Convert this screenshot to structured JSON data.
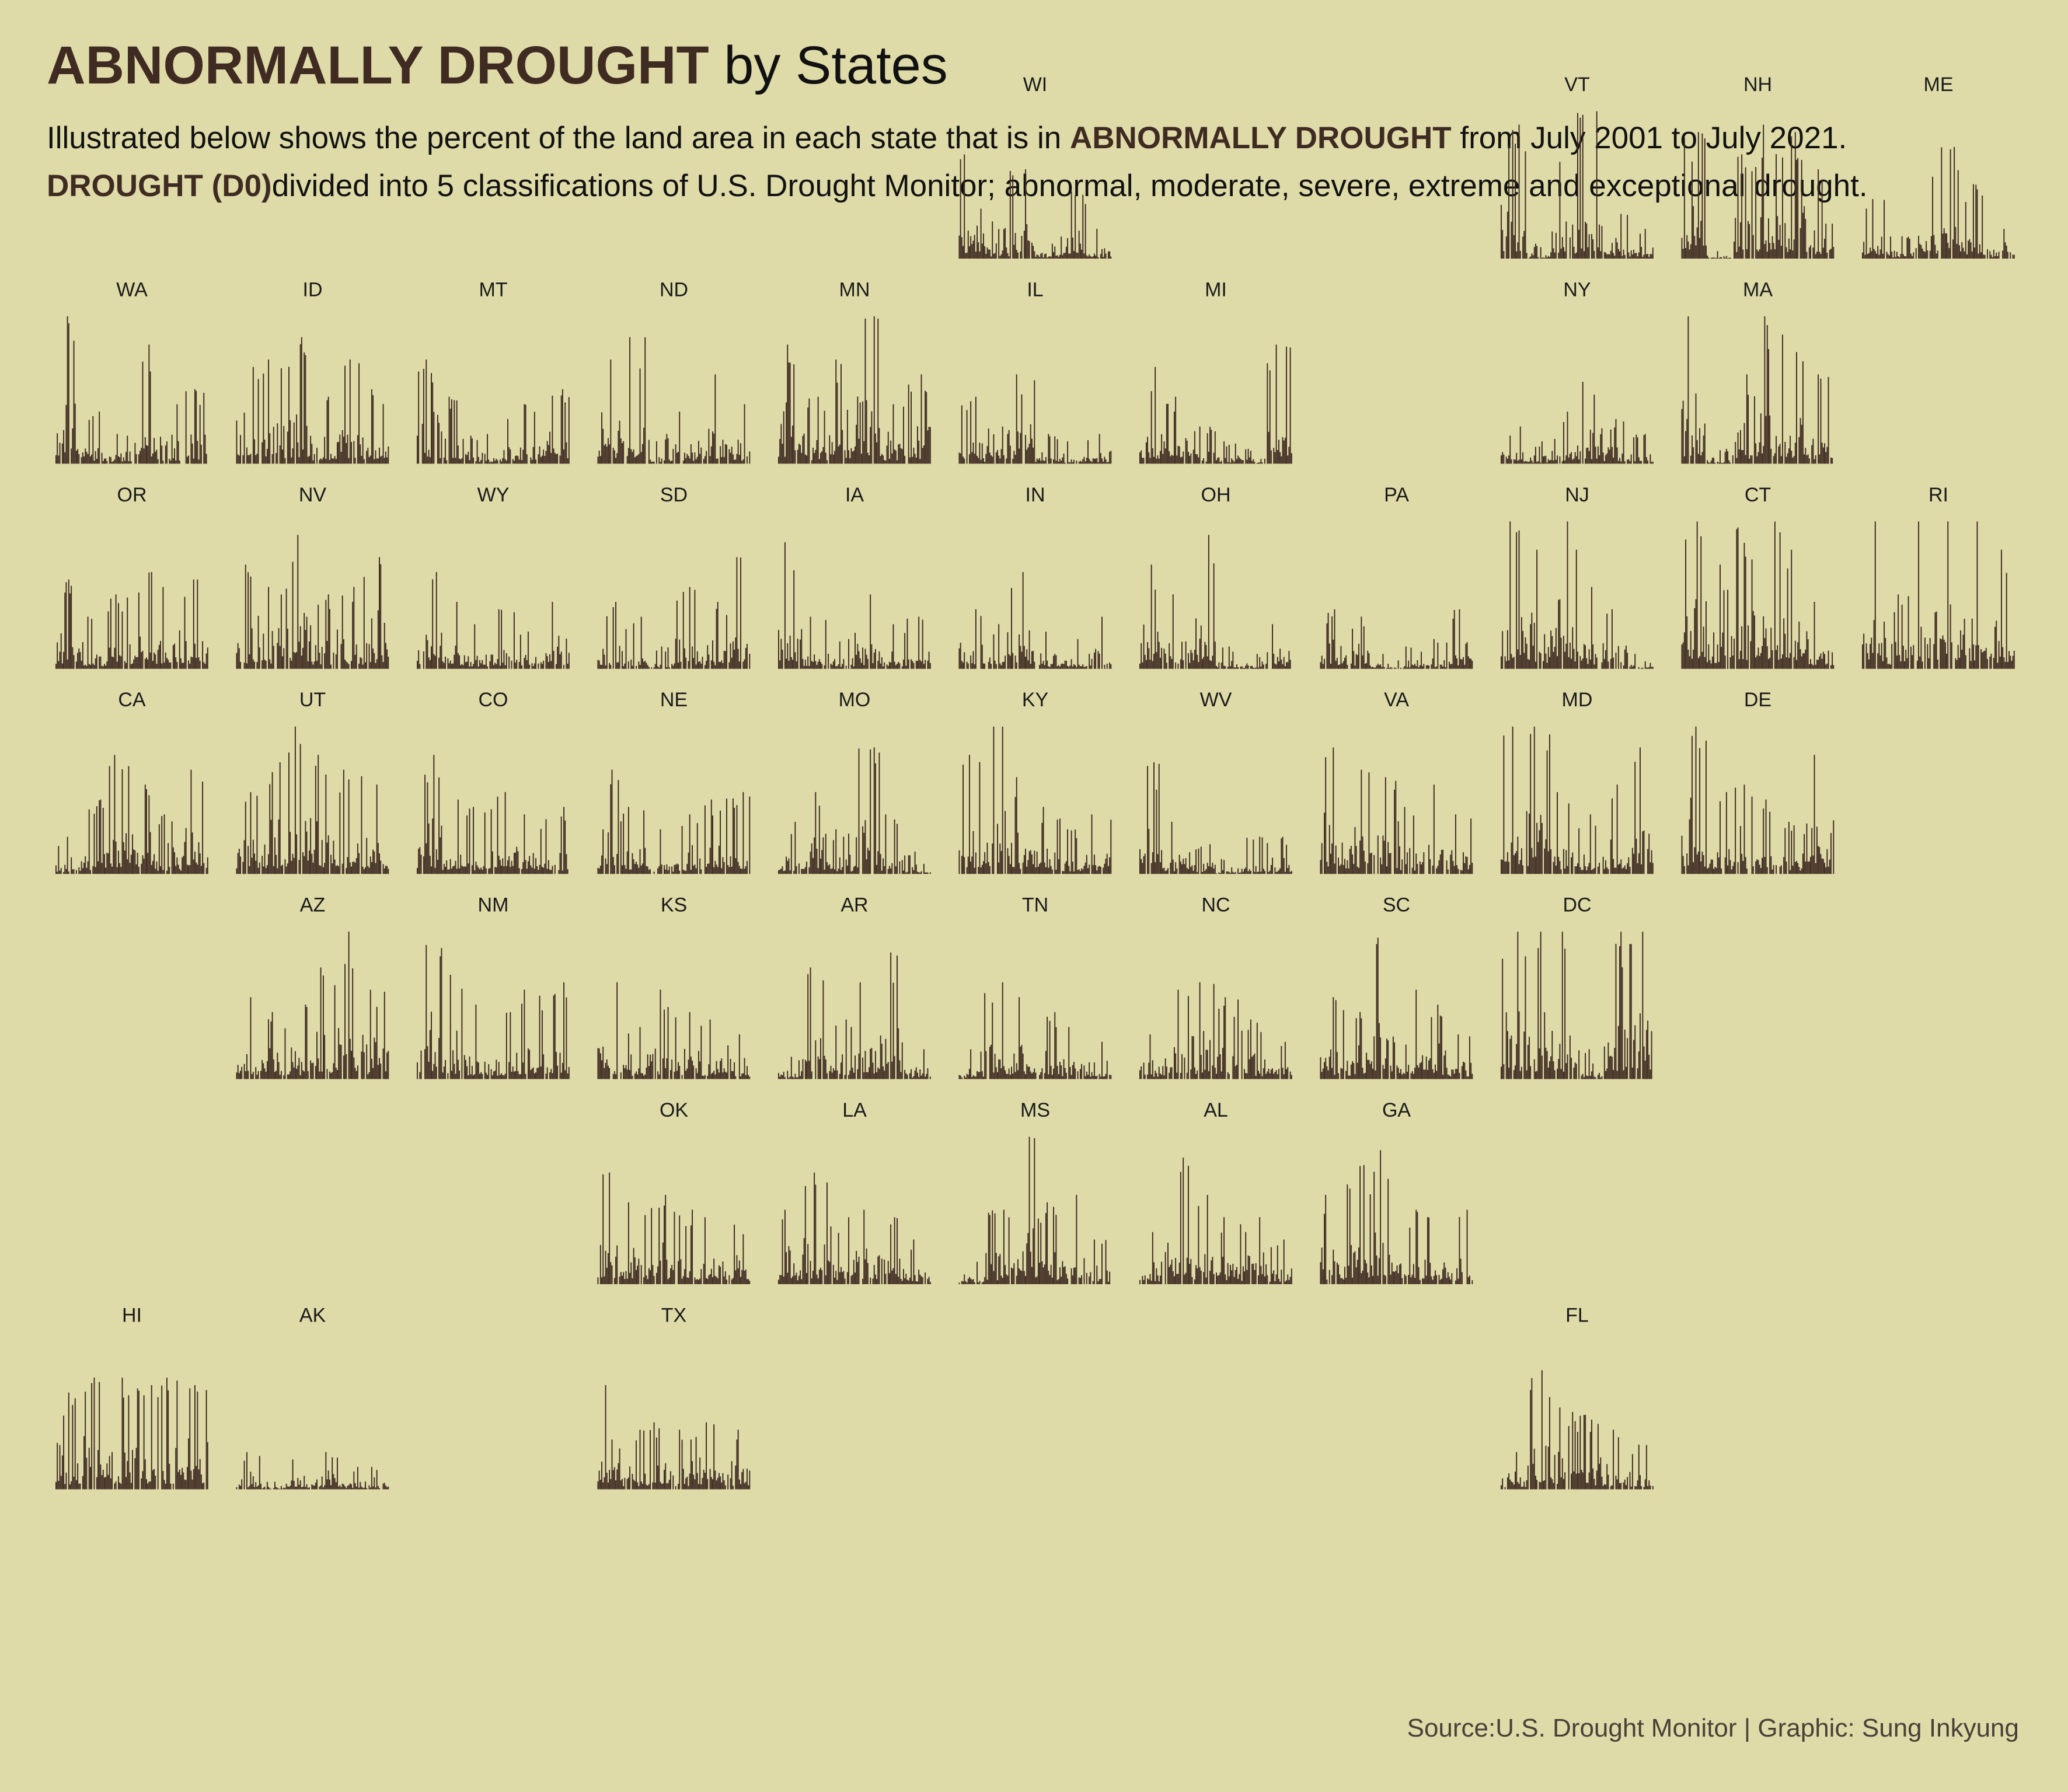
{
  "title": {
    "bold": "ABNORMALLY DROUGHT",
    "rest": "by States"
  },
  "subtitle": {
    "line1_pre": "Illustrated below shows the percent of the land area in each state that is in ",
    "line1_hl": "ABNORMALLY DROUGHT",
    "line1_post": " from July 2001 to July 2021.",
    "line2_hl": "DROUGHT (D0)",
    "line2_post": "divided into 5 classifications of U.S. Drought Monitor; abnormal, moderate, severe, extreme and exceptional drought."
  },
  "source": "Source:U.S. Drought Monitor | Graphic: Sung Inkyung",
  "colors": {
    "background": "#dedba8",
    "bar": "#3f2b22",
    "title_accent": "#3f2b22"
  },
  "chart_data": {
    "type": "bar",
    "layout": "small-multiples geographic grid (tile map)",
    "x": "week, July 2001 to July 2021",
    "y": "percent of land area in abnormal drought (D0)",
    "ylim": [
      0,
      100
    ],
    "states": [
      {
        "abbr": "WI",
        "row": 0,
        "col": 5,
        "peaks": [
          70,
          25,
          60,
          10,
          45,
          20
        ]
      },
      {
        "abbr": "VT",
        "row": 0,
        "col": 8,
        "peaks": [
          90,
          10,
          65,
          99,
          30,
          20
        ]
      },
      {
        "abbr": "NH",
        "row": 0,
        "col": 9,
        "peaks": [
          85,
          5,
          70,
          90,
          85,
          60
        ]
      },
      {
        "abbr": "ME",
        "row": 0,
        "col": 10,
        "peaks": [
          40,
          15,
          55,
          75,
          50,
          20
        ]
      },
      {
        "abbr": "WA",
        "row": 1,
        "col": 0,
        "peaks": [
          99,
          35,
          20,
          80,
          40,
          50
        ]
      },
      {
        "abbr": "ID",
        "row": 1,
        "col": 1,
        "peaks": [
          65,
          70,
          85,
          45,
          70,
          50
        ]
      },
      {
        "abbr": "MT",
        "row": 1,
        "col": 2,
        "peaks": [
          70,
          45,
          20,
          30,
          40,
          50
        ]
      },
      {
        "abbr": "ND",
        "row": 1,
        "col": 3,
        "peaks": [
          70,
          85,
          20,
          35,
          60,
          40
        ]
      },
      {
        "abbr": "MN",
        "row": 1,
        "col": 4,
        "peaks": [
          80,
          45,
          70,
          99,
          40,
          60
        ]
      },
      {
        "abbr": "IL",
        "row": 1,
        "col": 5,
        "peaks": [
          45,
          25,
          60,
          20,
          15,
          20
        ]
      },
      {
        "abbr": "MI",
        "row": 1,
        "col": 6,
        "peaks": [
          65,
          45,
          25,
          15,
          10,
          80
        ]
      },
      {
        "abbr": "NY",
        "row": 1,
        "col": 8,
        "peaks": [
          25,
          15,
          35,
          55,
          30,
          20
        ]
      },
      {
        "abbr": "MA",
        "row": 1,
        "col": 9,
        "peaks": [
          99,
          10,
          60,
          99,
          75,
          60
        ]
      },
      {
        "abbr": "OR",
        "row": 2,
        "col": 0,
        "peaks": [
          60,
          35,
          50,
          65,
          55,
          60
        ]
      },
      {
        "abbr": "NV",
        "row": 2,
        "col": 1,
        "peaks": [
          70,
          55,
          90,
          50,
          55,
          75
        ]
      },
      {
        "abbr": "WY",
        "row": 2,
        "col": 2,
        "peaks": [
          65,
          45,
          30,
          40,
          25,
          45
        ]
      },
      {
        "abbr": "SD",
        "row": 2,
        "col": 3,
        "peaks": [
          45,
          35,
          15,
          55,
          45,
          75
        ]
      },
      {
        "abbr": "IA",
        "row": 2,
        "col": 4,
        "peaks": [
          85,
          35,
          20,
          50,
          30,
          35
        ]
      },
      {
        "abbr": "IN",
        "row": 2,
        "col": 5,
        "peaks": [
          40,
          30,
          65,
          25,
          20,
          35
        ]
      },
      {
        "abbr": "OH",
        "row": 2,
        "col": 6,
        "peaks": [
          70,
          50,
          90,
          15,
          10,
          30
        ]
      },
      {
        "abbr": "PA",
        "row": 2,
        "col": 7,
        "peaks": [
          40,
          35,
          10,
          15,
          20,
          40
        ]
      },
      {
        "abbr": "NJ",
        "row": 2,
        "col": 8,
        "peaks": [
          99,
          80,
          99,
          55,
          40,
          10
        ]
      },
      {
        "abbr": "CT",
        "row": 2,
        "col": 9,
        "peaks": [
          99,
          70,
          95,
          99,
          80,
          45
        ]
      },
      {
        "abbr": "RI",
        "row": 2,
        "col": 10,
        "peaks": [
          99,
          50,
          99,
          99,
          99,
          80
        ]
      },
      {
        "abbr": "CA",
        "row": 3,
        "col": 0,
        "peaks": [
          25,
          50,
          80,
          60,
          40,
          70
        ]
      },
      {
        "abbr": "UT",
        "row": 3,
        "col": 1,
        "peaks": [
          55,
          75,
          99,
          80,
          70,
          60
        ]
      },
      {
        "abbr": "CO",
        "row": 3,
        "col": 2,
        "peaks": [
          80,
          50,
          45,
          55,
          40,
          45
        ]
      },
      {
        "abbr": "NE",
        "row": 3,
        "col": 3,
        "peaks": [
          70,
          45,
          30,
          40,
          50,
          55
        ]
      },
      {
        "abbr": "MO",
        "row": 3,
        "col": 4,
        "peaks": [
          35,
          55,
          30,
          85,
          40,
          15
        ]
      },
      {
        "abbr": "KY",
        "row": 3,
        "col": 5,
        "peaks": [
          80,
          99,
          65,
          45,
          30,
          40
        ]
      },
      {
        "abbr": "WV",
        "row": 3,
        "col": 6,
        "peaks": [
          75,
          35,
          20,
          10,
          25,
          25
        ]
      },
      {
        "abbr": "VA",
        "row": 3,
        "col": 7,
        "peaks": [
          85,
          70,
          65,
          45,
          60,
          40
        ]
      },
      {
        "abbr": "MD",
        "row": 3,
        "col": 8,
        "peaks": [
          99,
          99,
          55,
          40,
          60,
          85
        ]
      },
      {
        "abbr": "DE",
        "row": 3,
        "col": 9,
        "peaks": [
          99,
          55,
          60,
          50,
          35,
          80
        ]
      },
      {
        "abbr": "AZ",
        "row": 4,
        "col": 1,
        "peaks": [
          55,
          45,
          50,
          75,
          99,
          60
        ]
      },
      {
        "abbr": "NM",
        "row": 4,
        "col": 2,
        "peaks": [
          90,
          70,
          50,
          45,
          60,
          65
        ]
      },
      {
        "abbr": "KS",
        "row": 4,
        "col": 3,
        "peaks": [
          65,
          35,
          60,
          45,
          40,
          30
        ]
      },
      {
        "abbr": "AR",
        "row": 4,
        "col": 4,
        "peaks": [
          15,
          75,
          40,
          65,
          85,
          20
        ]
      },
      {
        "abbr": "TN",
        "row": 4,
        "col": 5,
        "peaks": [
          20,
          65,
          55,
          45,
          35,
          25
        ]
      },
      {
        "abbr": "NC",
        "row": 4,
        "col": 6,
        "peaks": [
          30,
          60,
          65,
          55,
          40,
          25
        ]
      },
      {
        "abbr": "SC",
        "row": 4,
        "col": 7,
        "peaks": [
          55,
          45,
          95,
          60,
          50,
          30
        ]
      },
      {
        "abbr": "DC",
        "row": 4,
        "col": 8,
        "peaks": [
          99,
          99,
          99,
          20,
          99,
          99
        ]
      },
      {
        "abbr": "OK",
        "row": 5,
        "col": 3,
        "peaks": [
          75,
          55,
          60,
          50,
          45,
          40
        ]
      },
      {
        "abbr": "LA",
        "row": 5,
        "col": 4,
        "peaks": [
          50,
          75,
          45,
          50,
          45,
          30
        ]
      },
      {
        "abbr": "MS",
        "row": 5,
        "col": 5,
        "peaks": [
          15,
          50,
          99,
          55,
          60,
          30
        ]
      },
      {
        "abbr": "AL",
        "row": 5,
        "col": 6,
        "peaks": [
          35,
          85,
          60,
          45,
          45,
          30
        ]
      },
      {
        "abbr": "GA",
        "row": 5,
        "col": 7,
        "peaks": [
          60,
          80,
          90,
          50,
          45,
          50
        ]
      },
      {
        "abbr": "HI",
        "row": 6,
        "col": 0,
        "peaks": [
          65,
          75,
          75,
          70,
          75,
          70
        ]
      },
      {
        "abbr": "AK",
        "row": 6,
        "col": 1,
        "peaks": [
          25,
          5,
          20,
          25,
          15,
          15
        ]
      },
      {
        "abbr": "TX",
        "row": 6,
        "col": 3,
        "peaks": [
          70,
          40,
          45,
          40,
          45,
          40
        ]
      },
      {
        "abbr": "FL",
        "row": 6,
        "col": 8,
        "peaks": [
          25,
          80,
          55,
          50,
          40,
          30
        ]
      }
    ]
  }
}
